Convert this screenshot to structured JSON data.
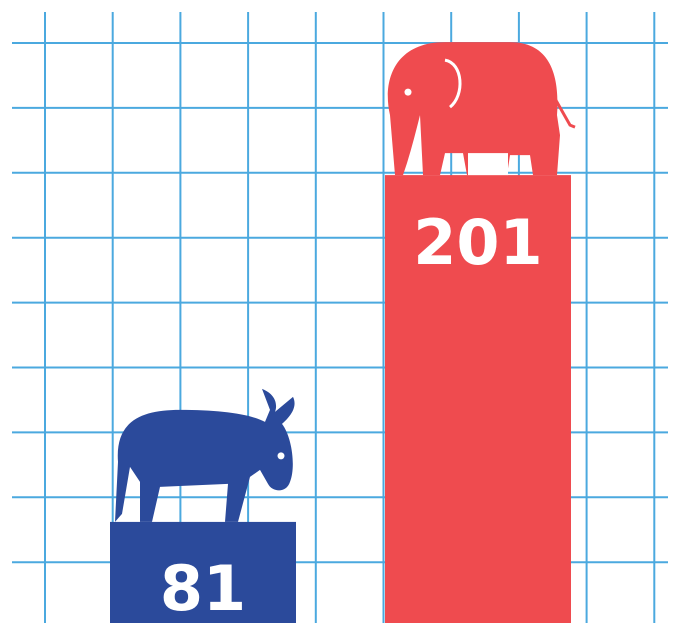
{
  "chart_data": {
    "type": "bar",
    "values": [
      81,
      201
    ],
    "colors": [
      "#2b4a9b",
      "#ef4b4f"
    ],
    "grid": true
  }
}
